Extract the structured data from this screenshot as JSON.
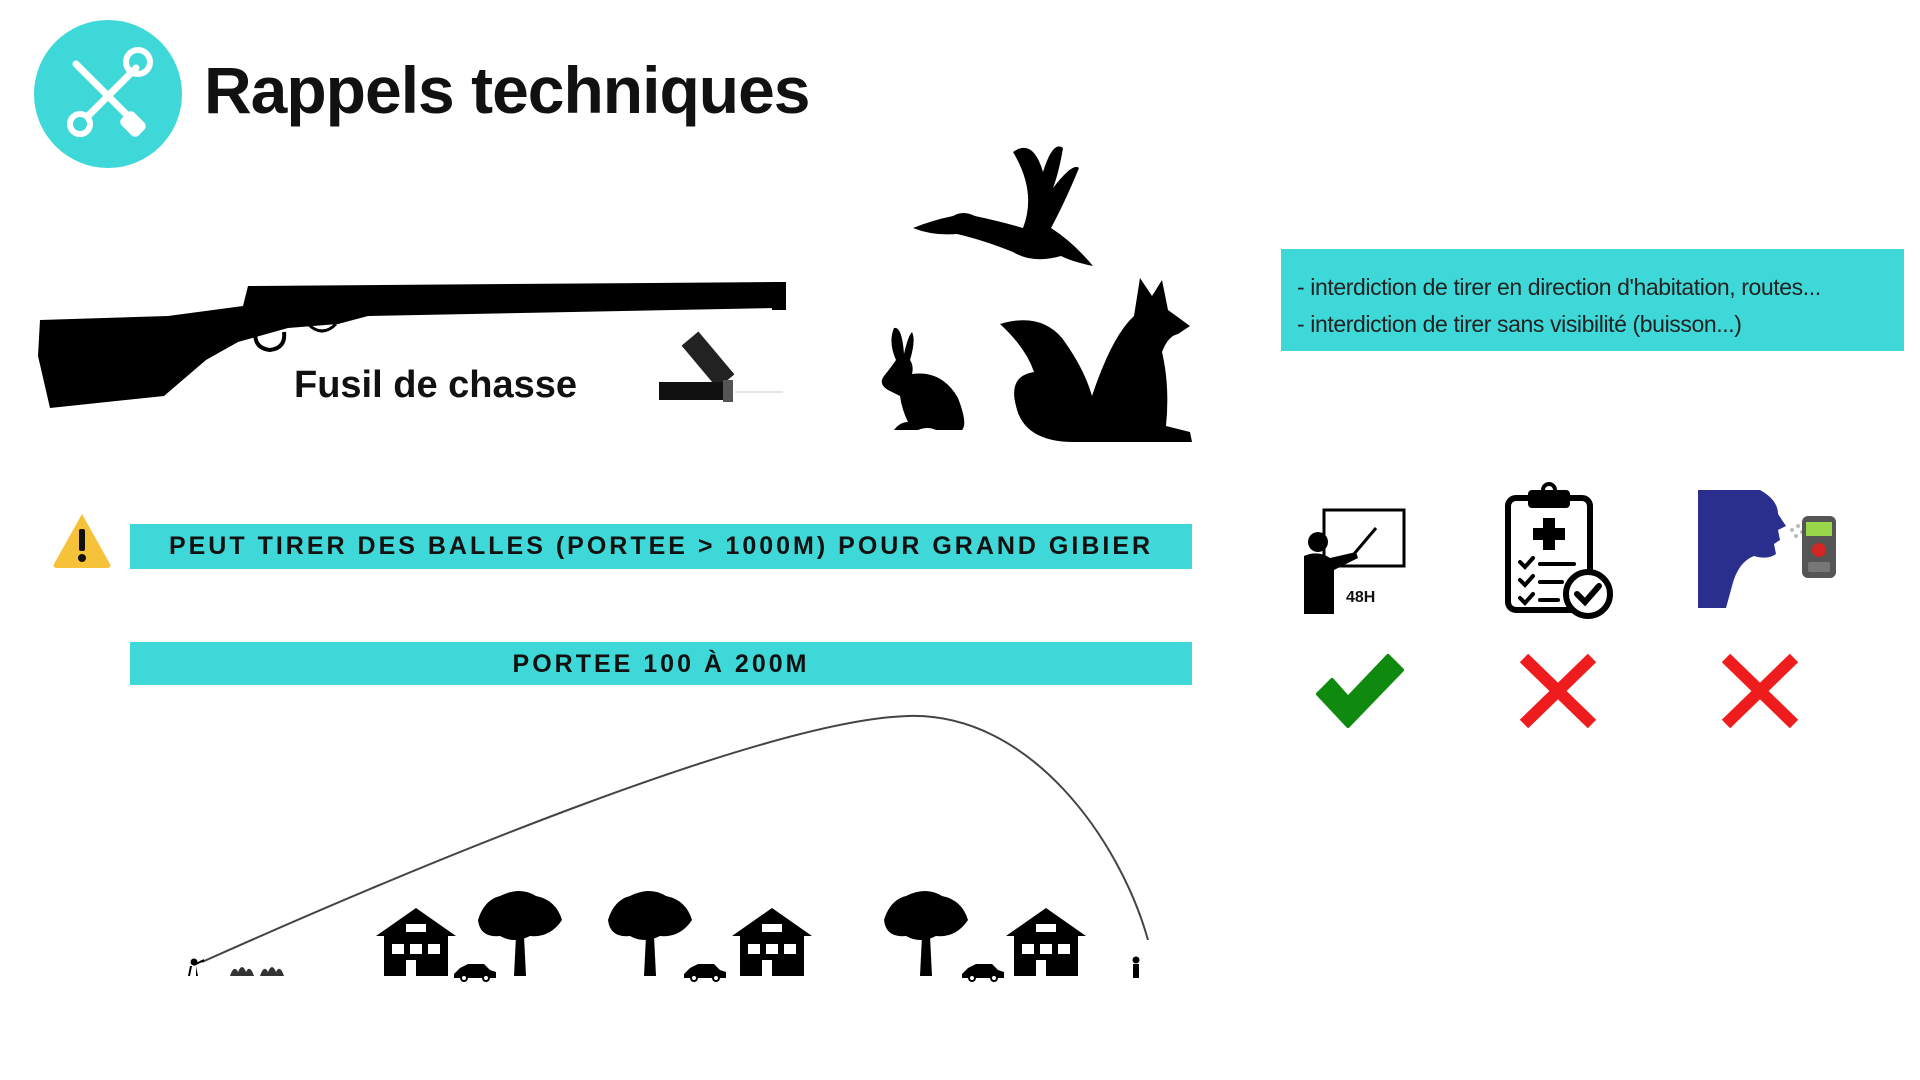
{
  "header": {
    "title": "Rappels techniques",
    "icon": "tools-icon",
    "accent_color": "#3fd8d8"
  },
  "weapon": {
    "label": "Fusil de chasse",
    "icons": [
      "shotgun-icon",
      "cartridge-icon"
    ]
  },
  "game": {
    "icons": [
      "duck-icon",
      "rabbit-icon",
      "fox-icon"
    ]
  },
  "warning": {
    "icon": "warning-icon",
    "text": "PEUT TIRER DES BALLES (PORTEE > 1000M) POUR GRAND GIBIER"
  },
  "range": {
    "text": "PORTEE 100 À 200M",
    "scene_icons": [
      "shooter-icon",
      "bush-icon",
      "house-icon",
      "tree-icon",
      "car-icon",
      "person-icon"
    ]
  },
  "rules": {
    "lines": [
      "- interdiction de tirer en direction d'habitation, routes...",
      "- interdiction de tirer sans visibilité (buisson...)"
    ]
  },
  "requirements": {
    "items": [
      {
        "icon": "training-icon",
        "label": "48H",
        "status": "allowed",
        "status_icon": "checkmark-icon"
      },
      {
        "icon": "medical-clipboard-icon",
        "status": "denied",
        "status_icon": "cross-icon"
      },
      {
        "icon": "breathalyzer-icon",
        "status": "denied",
        "status_icon": "cross-icon"
      }
    ],
    "check_color": "#0f8a0f",
    "cross_color": "#ee1c1c"
  }
}
